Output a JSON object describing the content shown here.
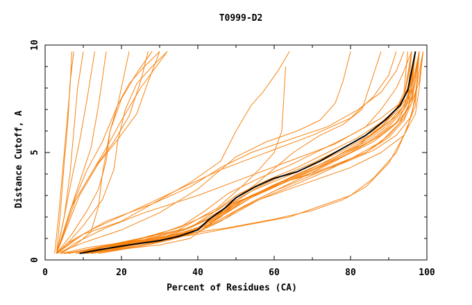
{
  "chart_data": {
    "type": "line",
    "title": "T0999-D2",
    "xlabel": "Percent of Residues (CA)",
    "ylabel": "Distance Cutoff, A",
    "xlim": [
      0,
      100
    ],
    "ylim": [
      0,
      10
    ],
    "x_ticks": [
      0,
      20,
      40,
      60,
      80,
      100
    ],
    "y_ticks": [
      0,
      5,
      10
    ],
    "x_tick_labels": [
      "0",
      "20",
      "40",
      "60",
      "80",
      "100"
    ],
    "y_tick_labels": [
      "0",
      "5",
      "10"
    ],
    "grid": false,
    "legend": "none",
    "colors": {
      "models": "#f7820f",
      "highlight": "#000000",
      "axes": "#000000",
      "background": "#ffffff"
    },
    "highlight_series": {
      "x": [
        9,
        15,
        22,
        30,
        35,
        40,
        43,
        47,
        50,
        55,
        60,
        66,
        72,
        78,
        84,
        89,
        93,
        95,
        96,
        97
      ],
      "y": [
        0.3,
        0.5,
        0.7,
        0.9,
        1.1,
        1.4,
        1.9,
        2.4,
        2.9,
        3.4,
        3.8,
        4.1,
        4.6,
        5.2,
        5.8,
        6.5,
        7.2,
        7.9,
        8.8,
        9.7
      ]
    },
    "series": [
      {
        "x": [
          2.5,
          3.5,
          4.5,
          5.5,
          6.5,
          7.0
        ],
        "y": [
          0.3,
          2,
          4,
          6,
          8,
          9.7
        ]
      },
      {
        "x": [
          3,
          4,
          5,
          6,
          6.5,
          7.5
        ],
        "y": [
          0.3,
          2.2,
          4.5,
          6.5,
          8.2,
          9.7
        ]
      },
      {
        "x": [
          3,
          5,
          6.5,
          7.5,
          8.5,
          10
        ],
        "y": [
          0.3,
          2,
          4,
          6,
          8,
          9.7
        ]
      },
      {
        "x": [
          3,
          5,
          7,
          9,
          11,
          13
        ],
        "y": [
          0.3,
          2,
          3.8,
          5.5,
          7.5,
          9.7
        ]
      },
      {
        "x": [
          3,
          6,
          9,
          12,
          14,
          16
        ],
        "y": [
          0.3,
          2,
          3.6,
          5.2,
          7.2,
          9.7
        ]
      },
      {
        "x": [
          3,
          7,
          11,
          15,
          19,
          22
        ],
        "y": [
          0.3,
          2.5,
          4.2,
          5.5,
          7.2,
          9.7
        ]
      },
      {
        "x": [
          3,
          8,
          13,
          18,
          22,
          25,
          27
        ],
        "y": [
          0.3,
          2.8,
          4.3,
          5.5,
          6.7,
          8.3,
          9.7
        ]
      },
      {
        "x": [
          3,
          9,
          14,
          19,
          24,
          27,
          30
        ],
        "y": [
          0.3,
          3,
          4.5,
          5.6,
          6.8,
          8.3,
          9.7
        ]
      },
      {
        "x": [
          3,
          7,
          12,
          16,
          20,
          25,
          32
        ],
        "y": [
          0.3,
          2.5,
          4.0,
          5.2,
          6.5,
          8.0,
          9.7
        ]
      },
      {
        "x": [
          3,
          6,
          10,
          15,
          18,
          19,
          21,
          24,
          28,
          32
        ],
        "y": [
          0.3,
          0.8,
          1.6,
          2.8,
          4.2,
          5.5,
          7.0,
          8.2,
          9.0,
          9.7
        ]
      },
      {
        "x": [
          3,
          7,
          11,
          14,
          16,
          17,
          19,
          22,
          26,
          30
        ],
        "y": [
          0.3,
          1.2,
          2.3,
          3.3,
          4.6,
          6.0,
          7.2,
          8.2,
          9.0,
          9.7
        ]
      },
      {
        "x": [
          4,
          8,
          12,
          14,
          15,
          17,
          20,
          24,
          28
        ],
        "y": [
          0.3,
          0.7,
          1.3,
          2.5,
          4.0,
          6.0,
          7.5,
          8.7,
          9.7
        ]
      },
      {
        "x": [
          3,
          10,
          20,
          30,
          38,
          46,
          50,
          54,
          57,
          59,
          61,
          63,
          64
        ],
        "y": [
          0.3,
          1.2,
          1.8,
          2.8,
          3.6,
          4.6,
          6.0,
          7.2,
          7.8,
          8.3,
          8.8,
          9.4,
          9.7
        ]
      },
      {
        "x": [
          5,
          15,
          25,
          35,
          45,
          52,
          56,
          60,
          62,
          63
        ],
        "y": [
          0.3,
          0.6,
          0.9,
          1.4,
          2.4,
          3.5,
          4.2,
          5.0,
          6.0,
          9.0
        ]
      },
      {
        "x": [
          3,
          10,
          20,
          30,
          40,
          50,
          58,
          66,
          72,
          76,
          78,
          80
        ],
        "y": [
          0.3,
          0.8,
          1.4,
          2.2,
          3.3,
          4.8,
          5.5,
          6.0,
          6.5,
          7.3,
          8.3,
          9.7
        ]
      },
      {
        "x": [
          5,
          15,
          25,
          35,
          45,
          55,
          65,
          72,
          78,
          83,
          88
        ],
        "y": [
          0.3,
          0.6,
          1.0,
          1.5,
          2.3,
          3.5,
          5.0,
          5.8,
          6.3,
          7.0,
          9.7
        ]
      },
      {
        "x": [
          5,
          12,
          20,
          30,
          38,
          44,
          50,
          58,
          66,
          74,
          82,
          88,
          92,
          94,
          95
        ],
        "y": [
          0.3,
          0.5,
          0.7,
          1.0,
          1.3,
          1.9,
          2.6,
          3.3,
          3.9,
          4.5,
          5.3,
          6.2,
          7.0,
          7.8,
          9.7
        ]
      },
      {
        "x": [
          10,
          18,
          26,
          34,
          40,
          46,
          52,
          60,
          68,
          76,
          84,
          90,
          94,
          96,
          97
        ],
        "y": [
          0.3,
          0.5,
          0.8,
          1.0,
          1.3,
          1.8,
          2.5,
          3.2,
          3.9,
          4.6,
          5.4,
          6.2,
          7.0,
          7.8,
          9.7
        ]
      },
      {
        "x": [
          10,
          18,
          26,
          34,
          40,
          46,
          54,
          62,
          70,
          78,
          86,
          91,
          95,
          96,
          98
        ],
        "y": [
          0.3,
          0.6,
          0.9,
          1.2,
          1.5,
          2.2,
          3.0,
          3.6,
          4.2,
          4.8,
          5.5,
          6.2,
          7.0,
          8.0,
          9.7
        ]
      },
      {
        "x": [
          8,
          16,
          24,
          32,
          40,
          48,
          56,
          64,
          72,
          80,
          88,
          93,
          96,
          97,
          98
        ],
        "y": [
          0.3,
          0.6,
          0.9,
          1.1,
          1.4,
          2.3,
          3.1,
          3.7,
          4.3,
          5.0,
          5.8,
          6.5,
          7.3,
          8.3,
          9.7
        ]
      },
      {
        "x": [
          10,
          20,
          30,
          38,
          44,
          50,
          58,
          66,
          74,
          82,
          88,
          92,
          95,
          96
        ],
        "y": [
          0.3,
          0.5,
          0.7,
          1.0,
          1.8,
          2.6,
          3.3,
          4.0,
          4.6,
          5.4,
          6.2,
          6.9,
          7.6,
          9.7
        ]
      },
      {
        "x": [
          10,
          20,
          30,
          38,
          44,
          50,
          56,
          62,
          70,
          78,
          86,
          92,
          96,
          97,
          99
        ],
        "y": [
          0.3,
          0.6,
          0.9,
          1.3,
          1.9,
          2.7,
          3.1,
          3.6,
          4.0,
          4.5,
          5.1,
          5.8,
          6.7,
          7.8,
          9.7
        ]
      },
      {
        "x": [
          12,
          22,
          32,
          40,
          48,
          56,
          64,
          72,
          80,
          88,
          94,
          97,
          98,
          99
        ],
        "y": [
          0.3,
          0.6,
          0.9,
          1.3,
          2.1,
          2.8,
          3.3,
          3.8,
          4.3,
          5.0,
          5.8,
          6.8,
          8.0,
          9.7
        ]
      },
      {
        "x": [
          10,
          20,
          30,
          38,
          44,
          50,
          58,
          66,
          74,
          82,
          88,
          92,
          94,
          95,
          96
        ],
        "y": [
          0.3,
          0.7,
          1.0,
          1.5,
          2.2,
          3.0,
          3.7,
          4.3,
          5.0,
          5.7,
          6.4,
          7.0,
          7.6,
          8.4,
          9.7
        ]
      },
      {
        "x": [
          8,
          18,
          28,
          36,
          42,
          48,
          56,
          64,
          72,
          80,
          88,
          93,
          95,
          97
        ],
        "y": [
          0.3,
          0.7,
          1.1,
          1.6,
          2.3,
          3.1,
          3.8,
          4.4,
          5.1,
          5.8,
          6.6,
          7.3,
          8.0,
          9.7
        ]
      },
      {
        "x": [
          6,
          14,
          22,
          30,
          38,
          44,
          52,
          60,
          68,
          76,
          84,
          90,
          94,
          96,
          97
        ],
        "y": [
          0.3,
          0.6,
          0.9,
          1.2,
          1.5,
          2.0,
          2.8,
          3.5,
          4.1,
          4.8,
          5.6,
          6.4,
          7.2,
          8.2,
          9.7
        ]
      },
      {
        "x": [
          10,
          22,
          34,
          44,
          52,
          60,
          68,
          76,
          84,
          90,
          94,
          96,
          98
        ],
        "y": [
          0.3,
          0.7,
          1.1,
          1.7,
          2.5,
          3.2,
          3.8,
          4.4,
          5.0,
          5.8,
          6.6,
          7.6,
          9.7
        ]
      },
      {
        "x": [
          14,
          24,
          32,
          40,
          46,
          52,
          60,
          68,
          76,
          84,
          90,
          94,
          96,
          97
        ],
        "y": [
          0.3,
          0.6,
          0.9,
          1.3,
          2.0,
          2.8,
          3.5,
          4.1,
          4.8,
          5.5,
          6.3,
          7.1,
          8.0,
          9.7
        ]
      },
      {
        "x": [
          12,
          20,
          28,
          36,
          42,
          48,
          54,
          62,
          70,
          78,
          86,
          92,
          95,
          97
        ],
        "y": [
          0.3,
          0.5,
          0.8,
          1.1,
          1.7,
          2.5,
          3.2,
          3.8,
          4.4,
          5.1,
          5.9,
          6.7,
          7.5,
          9.7
        ]
      },
      {
        "x": [
          8,
          16,
          26,
          36,
          44,
          50,
          56,
          62,
          70,
          78,
          86,
          91,
          94,
          96
        ],
        "y": [
          0.3,
          0.6,
          0.9,
          1.4,
          2.0,
          2.8,
          3.4,
          3.9,
          4.5,
          5.2,
          6.0,
          6.8,
          7.6,
          9.7
        ]
      },
      {
        "x": [
          9,
          18,
          28,
          38,
          46,
          54,
          62,
          70,
          78,
          86,
          92,
          95,
          97
        ],
        "y": [
          0.3,
          0.7,
          1.0,
          1.5,
          2.3,
          3.0,
          3.6,
          4.2,
          4.9,
          5.6,
          6.4,
          7.3,
          9.7
        ]
      },
      {
        "x": [
          11,
          20,
          30,
          40,
          48,
          56,
          64,
          72,
          80,
          88,
          93,
          96,
          98
        ],
        "y": [
          0.3,
          0.6,
          0.9,
          1.3,
          2.0,
          2.8,
          3.4,
          4.0,
          4.7,
          5.5,
          6.4,
          7.5,
          9.7
        ]
      },
      {
        "x": [
          10,
          22,
          34,
          44,
          54,
          64,
          74,
          84,
          90,
          94,
          96,
          98,
          99
        ],
        "y": [
          0.3,
          0.7,
          1.1,
          1.8,
          2.9,
          3.7,
          4.3,
          5.0,
          5.7,
          6.5,
          7.3,
          8.3,
          9.7
        ]
      },
      {
        "x": [
          4,
          12,
          24,
          36,
          48,
          60,
          70,
          78,
          84,
          90,
          94,
          97,
          98
        ],
        "y": [
          0.3,
          0.6,
          0.9,
          1.2,
          1.5,
          1.9,
          2.3,
          2.8,
          3.4,
          4.5,
          5.8,
          7.2,
          9.7
        ]
      },
      {
        "x": [
          6,
          16,
          28,
          40,
          52,
          64,
          72,
          80,
          86,
          92,
          95,
          97,
          98
        ],
        "y": [
          0.3,
          0.6,
          0.9,
          1.2,
          1.6,
          2.0,
          2.5,
          3.0,
          3.8,
          5.0,
          6.2,
          7.5,
          9.7
        ]
      },
      {
        "x": [
          4,
          8,
          16,
          26,
          40,
          52,
          64,
          76,
          84,
          88,
          92,
          94,
          96
        ],
        "y": [
          0.3,
          0.8,
          1.5,
          2.2,
          3.0,
          3.8,
          4.6,
          5.4,
          6.2,
          7.0,
          8.0,
          8.8,
          9.7
        ]
      },
      {
        "x": [
          3,
          6,
          12,
          22,
          34,
          46,
          58,
          70,
          80,
          86,
          90,
          92
        ],
        "y": [
          0.3,
          0.8,
          1.4,
          2.2,
          3.2,
          4.2,
          5.0,
          5.8,
          6.6,
          7.6,
          8.6,
          9.7
        ]
      },
      {
        "x": [
          3,
          8,
          16,
          28,
          38,
          46,
          54,
          64,
          74,
          82,
          88,
          92,
          94
        ],
        "y": [
          0.3,
          1.0,
          1.8,
          2.6,
          3.4,
          4.3,
          5.0,
          5.6,
          6.2,
          7.0,
          7.8,
          8.8,
          9.7
        ]
      }
    ]
  }
}
